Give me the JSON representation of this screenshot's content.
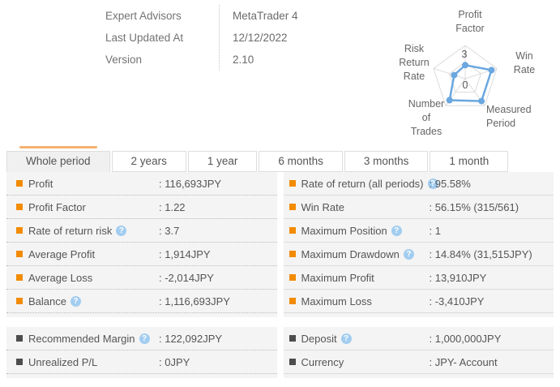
{
  "header": {
    "rows": [
      {
        "label": "Expert Advisors",
        "value": "MetaTrader 4"
      },
      {
        "label": "Last Updated At",
        "value": "12/12/2022"
      },
      {
        "label": "Version",
        "value": "2.10"
      }
    ]
  },
  "chart_data": {
    "type": "radar",
    "title": "",
    "categories": [
      "Profit Factor",
      "Win Rate",
      "Measured Period",
      "Number of Trades",
      "Risk Return Rate"
    ],
    "values": [
      1.22,
      2.5,
      2.5,
      2.4,
      1.05
    ],
    "axis_min": 0,
    "axis_max": 3,
    "tick_labels": [
      "0",
      "3"
    ],
    "grid": "pentagon, outer ring + mid ring + spokes",
    "line_color": "#6aa7e0"
  },
  "tabs": [
    {
      "label": "Whole period",
      "active": true
    },
    {
      "label": "2 years",
      "active": false
    },
    {
      "label": "1 year",
      "active": false
    },
    {
      "label": "6 months",
      "active": false
    },
    {
      "label": "3 months",
      "active": false
    },
    {
      "label": "1 month",
      "active": false
    }
  ],
  "stats_table": {
    "left": [
      {
        "label": "Profit",
        "value": ": 116,693JPY",
        "help": false
      },
      {
        "label": "Profit Factor",
        "value": ": 1.22",
        "help": false
      },
      {
        "label": "Rate of return risk",
        "value": ": 3.7",
        "help": true
      },
      {
        "label": "Average Profit",
        "value": ": 1,914JPY",
        "help": false
      },
      {
        "label": "Average Loss",
        "value": ": -2,014JPY",
        "help": false
      },
      {
        "label": "Balance",
        "value": ": 1,116,693JPY",
        "help": true
      }
    ],
    "right": [
      {
        "label": "Rate of return (all periods)",
        "value": ": 95.58%",
        "help": true
      },
      {
        "label": "Win Rate",
        "value": ": 56.15% (315/561)",
        "help": false
      },
      {
        "label": "Maximum Position",
        "value": ": 1",
        "help": true
      },
      {
        "label": "Maximum Drawdown",
        "value": ": 14.84% (31,515JPY)",
        "help": true
      },
      {
        "label": "Maximum Profit",
        "value": ": 13,910JPY",
        "help": false
      },
      {
        "label": "Maximum Loss",
        "value": ": -3,410JPY",
        "help": false
      }
    ]
  },
  "account_table": {
    "left": [
      {
        "label": "Recommended Margin",
        "value": ": 122,092JPY",
        "help": true
      },
      {
        "label": "Unrealized P/L",
        "value": ": 0JPY",
        "help": false
      }
    ],
    "right": [
      {
        "label": "Deposit",
        "value": ": 1,000,000JPY",
        "help": true
      },
      {
        "label": "Currency",
        "value": ": JPY- Account",
        "help": false
      }
    ]
  },
  "icons": {
    "help_glyph": "?"
  },
  "colors": {
    "bullet_orange": "#f28b00",
    "bullet_dark": "#4d4d4d",
    "tab_indicator": "#f5b06e",
    "help_icon_bg": "#a2cdf0",
    "radar_line": "#6aa7e0",
    "panel_bg": "#f4f4f4"
  }
}
